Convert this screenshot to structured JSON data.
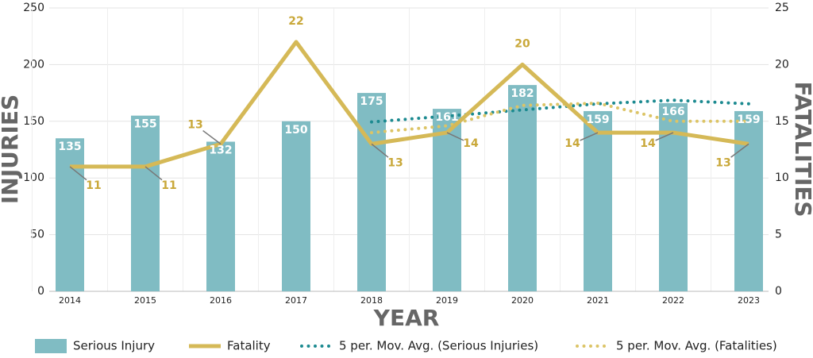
{
  "chart_data": {
    "type": "bar",
    "x_label": "YEAR",
    "y_label": "INJURIES",
    "y2_label": "FATALITIES",
    "categories": [
      "2014",
      "2015",
      "2016",
      "2017",
      "2018",
      "2019",
      "2020",
      "2021",
      "2022",
      "2023"
    ],
    "series": [
      {
        "name": "Serious Injury",
        "type": "bar",
        "color": "#80bcc3",
        "values": [
          135,
          155,
          132,
          150,
          175,
          161,
          182,
          159,
          166,
          159
        ]
      },
      {
        "name": "Fatality",
        "type": "line",
        "axis": "y2",
        "color": "#d5b957",
        "values": [
          11,
          11,
          13,
          22,
          13,
          14,
          20,
          14,
          14,
          13
        ]
      },
      {
        "name": "5 per. Mov. Avg. (Serious Injuries)",
        "type": "dotted",
        "color": "#1c8a90",
        "values": [
          null,
          null,
          null,
          null,
          149.4,
          154.6,
          160,
          165.4,
          168.6,
          165.4
        ]
      },
      {
        "name": "5 per. Mov. Avg. (Fatalities)",
        "type": "dotted",
        "axis": "y2",
        "color": "#dcc466",
        "values": [
          null,
          null,
          null,
          null,
          14,
          14.6,
          16.4,
          16.6,
          15,
          15
        ]
      }
    ],
    "ylim": [
      0,
      250
    ],
    "yticks": [
      0,
      50,
      100,
      150,
      200,
      250
    ],
    "y2lim": [
      0,
      25
    ],
    "y2ticks": [
      0,
      5,
      10,
      15,
      20,
      25
    ],
    "grid": true
  }
}
